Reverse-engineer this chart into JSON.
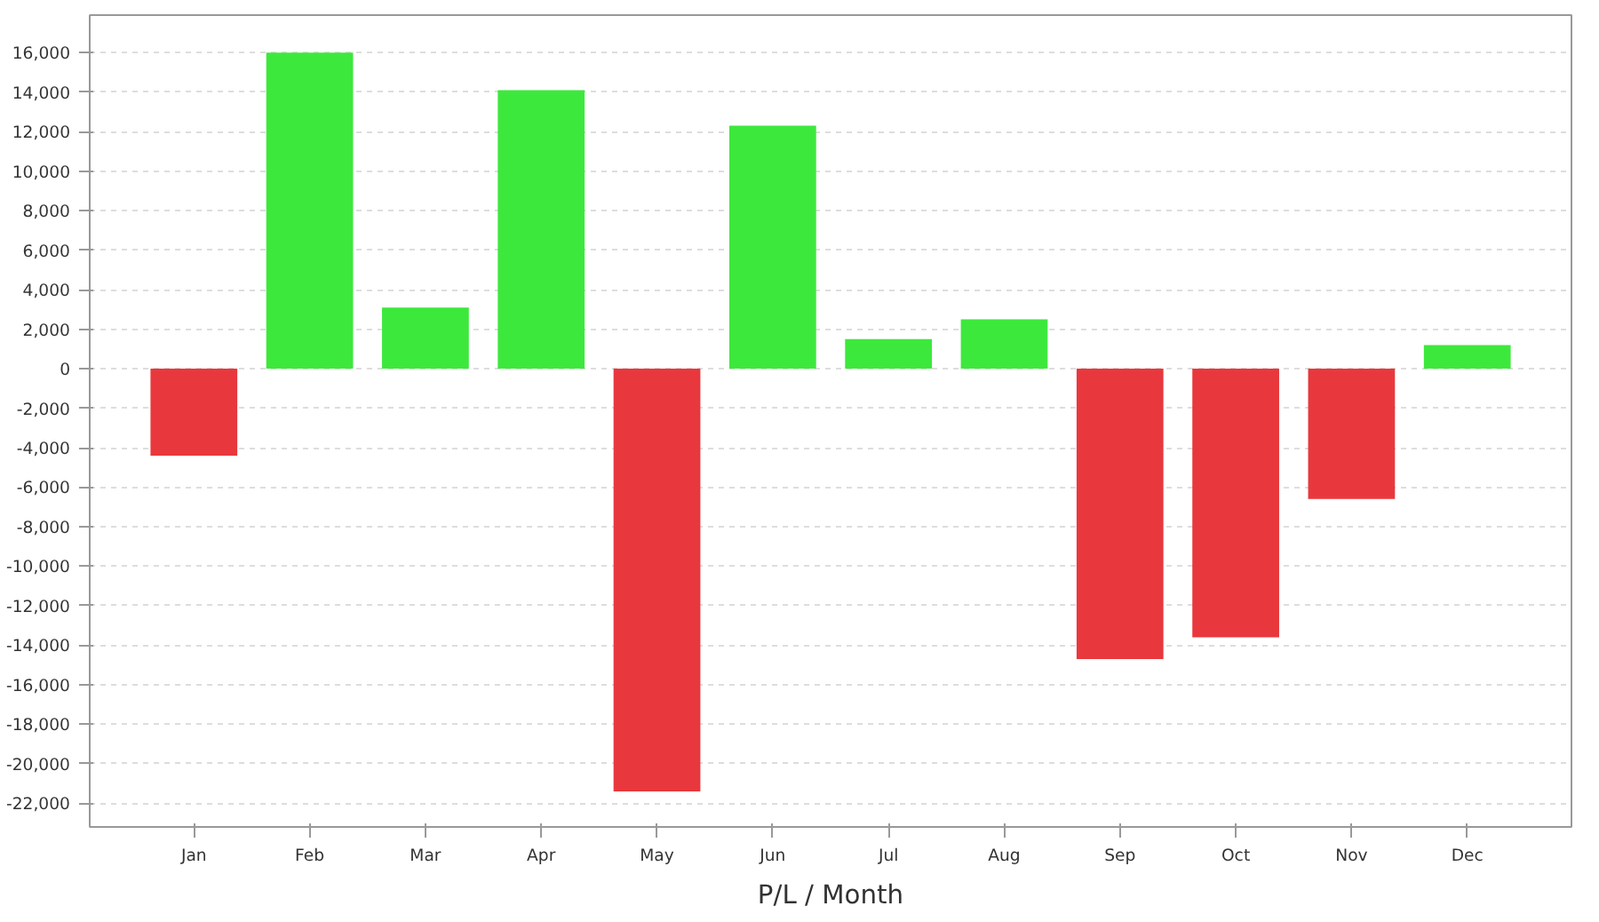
{
  "chart_data": {
    "type": "bar",
    "xlabel": "P/L / Month",
    "categories": [
      "Jan",
      "Feb",
      "Mar",
      "Apr",
      "May",
      "Jun",
      "Jul",
      "Aug",
      "Sep",
      "Oct",
      "Nov",
      "Dec"
    ],
    "values": [
      -4400,
      16000,
      3100,
      14100,
      -21400,
      12300,
      1500,
      2500,
      -14700,
      -13600,
      -6600,
      1200
    ],
    "colors": [
      "#e8383d",
      "#3de83d",
      "#3de83d",
      "#3de83d",
      "#e8383d",
      "#3de83d",
      "#3de83d",
      "#3de83d",
      "#e8383d",
      "#e8383d",
      "#e8383d",
      "#3de83d"
    ],
    "ylim": [
      -23200,
      17900
    ],
    "yticks": [
      {
        "value": -22000,
        "label": "-22,000"
      },
      {
        "value": -20000,
        "label": "-20,000"
      },
      {
        "value": -18000,
        "label": "-18,000"
      },
      {
        "value": -16000,
        "label": "-16,000"
      },
      {
        "value": -14000,
        "label": "-14,000"
      },
      {
        "value": -12000,
        "label": "-12,000"
      },
      {
        "value": -10000,
        "label": "-10,000"
      },
      {
        "value": -8000,
        "label": "-8,000"
      },
      {
        "value": -6000,
        "label": "-6,000"
      },
      {
        "value": -4000,
        "label": "-4,000"
      },
      {
        "value": -2000,
        "label": "-2,000"
      },
      {
        "value": 0,
        "label": "0"
      },
      {
        "value": 2000,
        "label": "2,000"
      },
      {
        "value": 4000,
        "label": "4,000"
      },
      {
        "value": 6000,
        "label": "6,000"
      },
      {
        "value": 8000,
        "label": "8,000"
      },
      {
        "value": 10000,
        "label": "10,000"
      },
      {
        "value": 12000,
        "label": "12,000"
      },
      {
        "value": 14000,
        "label": "14,000"
      },
      {
        "value": 16000,
        "label": "16,000"
      }
    ],
    "grid": "y"
  }
}
